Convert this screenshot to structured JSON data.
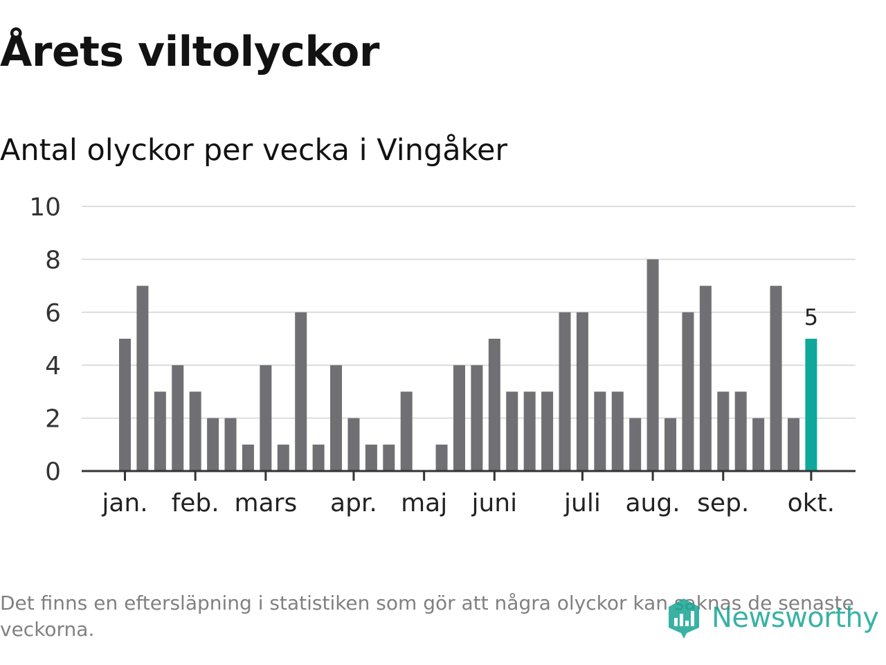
{
  "chart_data": {
    "type": "bar",
    "title": "Årets viltolyckor",
    "subtitle": "Antal olyckor per vecka i Vingåker",
    "ylim": [
      0,
      10
    ],
    "yticks": [
      0,
      2,
      4,
      6,
      8,
      10
    ],
    "grid": true,
    "month_ticks": [
      {
        "label": "jan.",
        "week": 1
      },
      {
        "label": "feb.",
        "week": 5
      },
      {
        "label": "mars",
        "week": 9
      },
      {
        "label": "apr.",
        "week": 14
      },
      {
        "label": "maj",
        "week": 18
      },
      {
        "label": "juni",
        "week": 22
      },
      {
        "label": "juli",
        "week": 27
      },
      {
        "label": "aug.",
        "week": 31
      },
      {
        "label": "sep.",
        "week": 35
      },
      {
        "label": "okt.",
        "week": 40
      }
    ],
    "values": [
      5,
      7,
      3,
      4,
      3,
      2,
      2,
      1,
      4,
      1,
      6,
      1,
      4,
      2,
      1,
      1,
      3,
      0,
      1,
      4,
      4,
      5,
      3,
      3,
      3,
      6,
      6,
      3,
      3,
      2,
      8,
      2,
      6,
      7,
      3,
      3,
      2,
      7,
      2,
      5
    ],
    "highlight_last_label": "5",
    "colors": {
      "bar": "#706f74",
      "highlight": "#0fa89b",
      "grid": "#dcdcdc",
      "axis": "#333333"
    }
  },
  "footnote": "Det finns en eftersläpning i statistiken som gör att några olyckor kan saknas de senaste veckorna.",
  "brand": {
    "name": "Newsworthy",
    "icon": "newsworthy-logo-icon",
    "color": "#17a595"
  }
}
